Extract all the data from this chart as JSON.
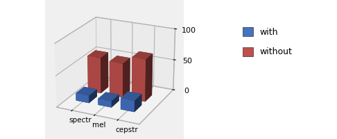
{
  "categories": [
    "spectr",
    "mel",
    "cepstr"
  ],
  "with_values": [
    12,
    10,
    18
  ],
  "without_values": [
    58,
    55,
    68
  ],
  "with_color": "#4472C4",
  "without_color": "#C0504D",
  "yticks": [
    0,
    50,
    100
  ],
  "legend_labels": [
    "with",
    "without"
  ],
  "chart_bg": "#f0f0f0",
  "fig_bg": "#ffffff",
  "bar_width": 0.6,
  "bar_depth": 0.4,
  "elev": 22,
  "azim": -65,
  "y_with": 0.5,
  "y_without": 1.1,
  "xlim": [
    -0.4,
    3.2
  ],
  "ylim": [
    0.0,
    2.0
  ],
  "zlim": [
    0,
    100
  ]
}
